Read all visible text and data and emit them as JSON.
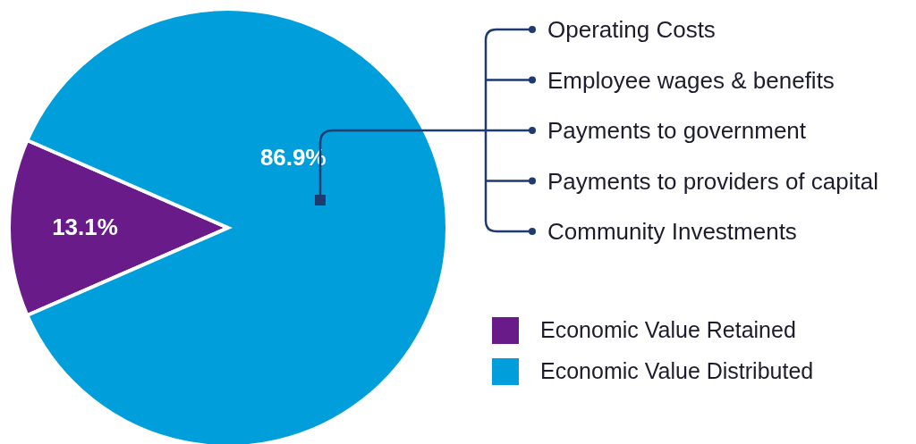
{
  "chart_data": {
    "type": "pie",
    "categories": [
      "Economic Value Retained",
      "Economic Value Distributed"
    ],
    "values": [
      13.1,
      86.9
    ],
    "colors": [
      "#6a1b8a",
      "#009fdb"
    ],
    "value_labels": [
      "13.1%",
      "86.9%"
    ],
    "legend": "bottom right",
    "annotations": [
      "Operating Costs",
      "Employee wages & benefits",
      "Payments to government",
      "Payments to providers of capital",
      "Community Investments"
    ]
  }
}
